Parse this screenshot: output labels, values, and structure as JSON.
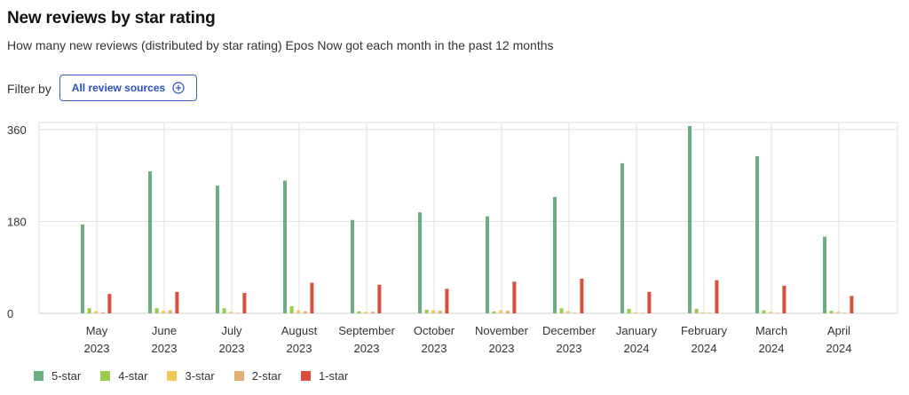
{
  "header": {
    "title": "New reviews by star rating",
    "subtitle": "How many new reviews (distributed by star rating) Epos Now got each month in the past 12 months"
  },
  "filter": {
    "label": "Filter by",
    "button_label": "All review sources",
    "button_icon": "plus-circle-icon"
  },
  "chart_data": {
    "type": "bar",
    "title": "",
    "xlabel": "",
    "ylabel": "",
    "ylim": [
      0,
      360
    ],
    "yticks": [
      0,
      180,
      360
    ],
    "grid": true,
    "legend_position": "bottom-left",
    "categories": [
      {
        "month": "May",
        "year": "2023"
      },
      {
        "month": "June",
        "year": "2023"
      },
      {
        "month": "July",
        "year": "2023"
      },
      {
        "month": "August",
        "year": "2023"
      },
      {
        "month": "September",
        "year": "2023"
      },
      {
        "month": "October",
        "year": "2023"
      },
      {
        "month": "November",
        "year": "2023"
      },
      {
        "month": "December",
        "year": "2023"
      },
      {
        "month": "January",
        "year": "2024"
      },
      {
        "month": "February",
        "year": "2024"
      },
      {
        "month": "March",
        "year": "2024"
      },
      {
        "month": "April",
        "year": "2024"
      }
    ],
    "series": [
      {
        "name": "5-star",
        "color": "#6aaf7e",
        "values": [
          174,
          278,
          250,
          260,
          183,
          198,
          190,
          228,
          294,
          367,
          308,
          150
        ]
      },
      {
        "name": "4-star",
        "color": "#9acd4f",
        "values": [
          10,
          10,
          10,
          14,
          4,
          7,
          4,
          10,
          9,
          9,
          6,
          5
        ]
      },
      {
        "name": "3-star",
        "color": "#f0c95b",
        "values": [
          4,
          5,
          3,
          6,
          3,
          6,
          6,
          4,
          2,
          2,
          3,
          3
        ]
      },
      {
        "name": "2-star",
        "color": "#e4ae72",
        "values": [
          2,
          6,
          1,
          4,
          3,
          5,
          5,
          1,
          1,
          1,
          1,
          1
        ]
      },
      {
        "name": "1-star",
        "color": "#de4c3c",
        "values": [
          38,
          42,
          40,
          60,
          56,
          48,
          62,
          68,
          42,
          65,
          54,
          34
        ]
      }
    ]
  }
}
